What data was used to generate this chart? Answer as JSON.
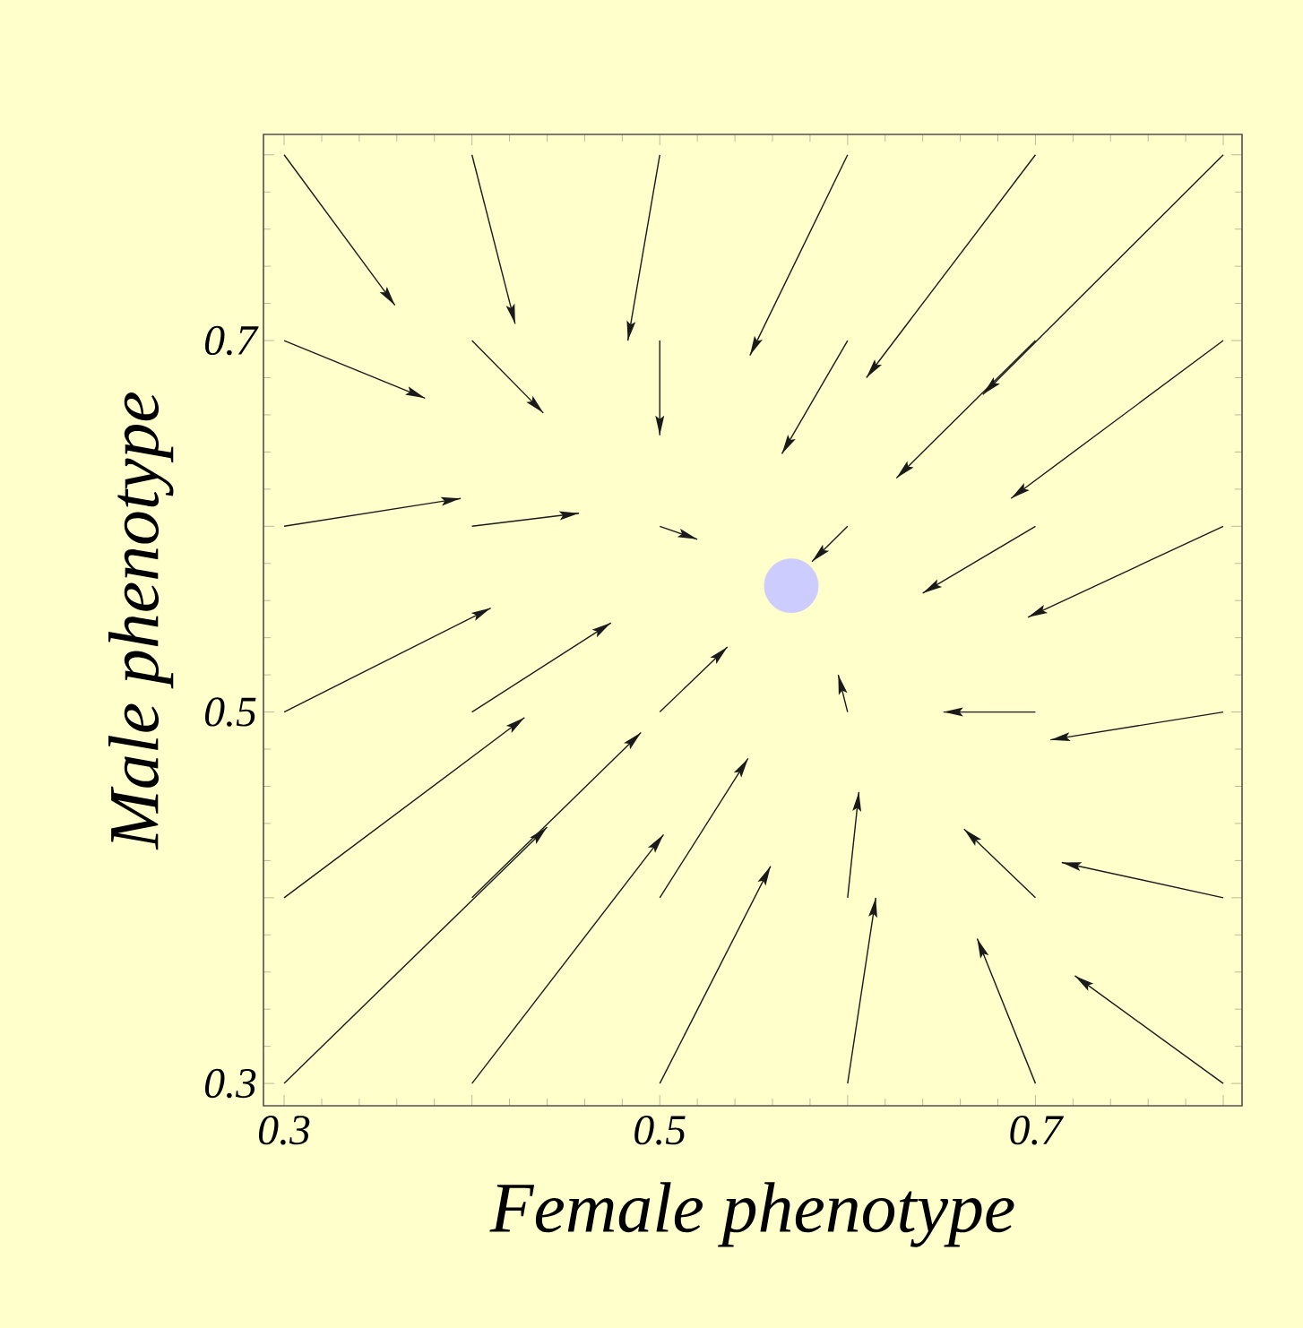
{
  "chart_data": {
    "type": "line",
    "xlabel": "Female phenotype",
    "ylabel": "Male phenotype",
    "xlim": [
      0.289,
      0.81
    ],
    "ylim": [
      0.288,
      0.811
    ],
    "xticks": [
      0.3,
      {
        "value": 0.4,
        "label": null
      },
      0.5,
      {
        "value": 0.6,
        "label": null
      },
      0.7,
      {
        "value": 0.8,
        "label": null
      }
    ],
    "yticks": [
      0.3,
      {
        "value": 0.4,
        "label": null
      },
      0.5,
      {
        "value": 0.6,
        "label": null
      },
      0.7,
      {
        "value": 0.8,
        "label": null
      }
    ],
    "marker": "none",
    "series": [
      {
        "color": "#1a1a1a",
        "x": [
          0.3,
          0.359
        ],
        "values": [
          0.8,
          0.719
        ]
      },
      {
        "color": "#1a1a1a",
        "x": [
          0.4,
          0.423
        ],
        "values": [
          0.8,
          0.709
        ]
      },
      {
        "color": "#1a1a1a",
        "x": [
          0.5,
          0.483
        ],
        "values": [
          0.8,
          0.7
        ]
      },
      {
        "color": "#1a1a1a",
        "x": [
          0.6,
          0.548
        ],
        "values": [
          0.8,
          0.692
        ]
      },
      {
        "color": "#1a1a1a",
        "x": [
          0.7,
          0.61
        ],
        "values": [
          0.8,
          0.68
        ]
      },
      {
        "color": "#1a1a1a",
        "x": [
          0.8,
          0.672
        ],
        "values": [
          0.8,
          0.671
        ]
      },
      {
        "color": "#1a1a1a",
        "x": [
          0.3,
          0.375
        ],
        "values": [
          0.7,
          0.669
        ]
      },
      {
        "color": "#1a1a1a",
        "x": [
          0.4,
          0.438
        ],
        "values": [
          0.7,
          0.661
        ]
      },
      {
        "color": "#1a1a1a",
        "x": [
          0.5,
          0.5
        ],
        "values": [
          0.7,
          0.649
        ]
      },
      {
        "color": "#1a1a1a",
        "x": [
          0.6,
          0.565
        ],
        "values": [
          0.7,
          0.639
        ]
      },
      {
        "color": "#1a1a1a",
        "x": [
          0.7,
          0.626
        ],
        "values": [
          0.7,
          0.626
        ]
      },
      {
        "color": "#1a1a1a",
        "x": [
          0.8,
          0.687
        ],
        "values": [
          0.7,
          0.615
        ]
      },
      {
        "color": "#1a1a1a",
        "x": [
          0.3,
          0.394
        ],
        "values": [
          0.6,
          0.615
        ]
      },
      {
        "color": "#1a1a1a",
        "x": [
          0.4,
          0.457
        ],
        "values": [
          0.6,
          0.607
        ]
      },
      {
        "color": "#1a1a1a",
        "x": [
          0.5,
          0.52
        ],
        "values": [
          0.6,
          0.593
        ]
      },
      {
        "color": "#1a1a1a",
        "x": [
          0.6,
          0.581
        ],
        "values": [
          0.6,
          0.581
        ]
      },
      {
        "color": "#1a1a1a",
        "x": [
          0.7,
          0.64
        ],
        "values": [
          0.6,
          0.564
        ]
      },
      {
        "color": "#1a1a1a",
        "x": [
          0.8,
          0.696
        ],
        "values": [
          0.6,
          0.551
        ]
      },
      {
        "color": "#1a1a1a",
        "x": [
          0.3,
          0.41
        ],
        "values": [
          0.5,
          0.556
        ]
      },
      {
        "color": "#1a1a1a",
        "x": [
          0.4,
          0.474
        ],
        "values": [
          0.5,
          0.548
        ]
      },
      {
        "color": "#1a1a1a",
        "x": [
          0.5,
          0.536
        ],
        "values": [
          0.5,
          0.535
        ]
      },
      {
        "color": "#1a1a1a",
        "x": [
          0.6,
          0.595
        ],
        "values": [
          0.5,
          0.52
        ]
      },
      {
        "color": "#1a1a1a",
        "x": [
          0.7,
          0.651
        ],
        "values": [
          0.5,
          0.5
        ]
      },
      {
        "color": "#1a1a1a",
        "x": [
          0.8,
          0.708
        ],
        "values": [
          0.5,
          0.485
        ]
      },
      {
        "color": "#1a1a1a",
        "x": [
          0.3,
          0.428
        ],
        "values": [
          0.4,
          0.497
        ]
      },
      {
        "color": "#1a1a1a",
        "x": [
          0.4,
          0.49
        ],
        "values": [
          0.4,
          0.489
        ]
      },
      {
        "color": "#1a1a1a",
        "x": [
          0.5,
          0.547
        ],
        "values": [
          0.4,
          0.475
        ]
      },
      {
        "color": "#1a1a1a",
        "x": [
          0.6,
          0.606
        ],
        "values": [
          0.4,
          0.457
        ]
      },
      {
        "color": "#1a1a1a",
        "x": [
          0.7,
          0.662
        ],
        "values": [
          0.4,
          0.437
        ]
      },
      {
        "color": "#1a1a1a",
        "x": [
          0.8,
          0.714
        ],
        "values": [
          0.4,
          0.419
        ]
      },
      {
        "color": "#1a1a1a",
        "x": [
          0.3,
          0.44
        ],
        "values": [
          0.3,
          0.438
        ]
      },
      {
        "color": "#1a1a1a",
        "x": [
          0.4,
          0.502
        ],
        "values": [
          0.3,
          0.434
        ]
      },
      {
        "color": "#1a1a1a",
        "x": [
          0.5,
          0.559
        ],
        "values": [
          0.3,
          0.417
        ]
      },
      {
        "color": "#1a1a1a",
        "x": [
          0.6,
          0.615
        ],
        "values": [
          0.3,
          0.4
        ]
      },
      {
        "color": "#1a1a1a",
        "x": [
          0.7,
          0.669
        ],
        "values": [
          0.3,
          0.378
        ]
      },
      {
        "color": "#1a1a1a",
        "x": [
          0.8,
          0.721
        ],
        "values": [
          0.3,
          0.358
        ]
      },
      {
        "type": "scatter",
        "color": "#ccccff",
        "x": [
          0.57
        ],
        "values": [
          0.568
        ]
      }
    ]
  }
}
